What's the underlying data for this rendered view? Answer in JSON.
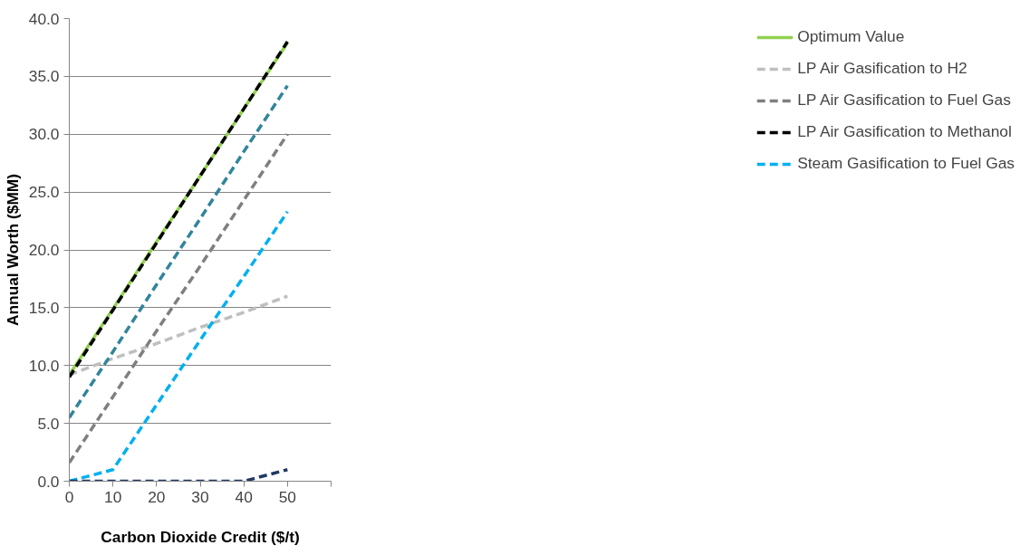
{
  "chart_data": {
    "type": "line",
    "xlabel": "Carbon Dioxide Credit ($/t)",
    "ylabel": "Annual Worth ($MM)",
    "x": [
      0,
      10,
      20,
      30,
      40,
      50
    ],
    "xlim": [
      0,
      60
    ],
    "xticks": [
      0,
      10,
      20,
      30,
      40,
      50,
      {
        "value": 60,
        "label": null
      }
    ],
    "ylim": [
      0,
      40
    ],
    "yticks": [
      {
        "value": 0,
        "label": "0.0"
      },
      {
        "value": 5,
        "label": "5.0"
      },
      {
        "value": 10,
        "label": "10.0"
      },
      {
        "value": 15,
        "label": "15.0"
      },
      {
        "value": 20,
        "label": "20.0"
      },
      {
        "value": 25,
        "label": "25.0"
      },
      {
        "value": 30,
        "label": "30.0"
      },
      {
        "value": 35,
        "label": "35.0"
      },
      {
        "value": 40,
        "label": "40.0"
      }
    ],
    "grid": "y",
    "legend": "right",
    "marker": "none",
    "series": [
      {
        "name": "Optimum Value",
        "color": "#92d050",
        "line_style": "solid",
        "values": [
          9.2,
          14.9,
          20.7,
          26.4,
          32.2,
          37.9
        ]
      },
      {
        "name": "LP Air Gasification to H2",
        "color": "#bfbfbf",
        "line_style": "dashed",
        "values": [
          9.2,
          10.6,
          11.9,
          13.3,
          14.6,
          16.0
        ]
      },
      {
        "name": "LP Air Gasification to Fuel Gas",
        "color": "#7f7f7f",
        "line_style": "dashed",
        "values": [
          1.6,
          7.3,
          13.0,
          18.6,
          24.3,
          30.0
        ]
      },
      {
        "name": "LP Air Gasification to Methanol",
        "color": "#000000",
        "line_style": "dashed",
        "values": [
          9.0,
          14.8,
          20.6,
          26.4,
          32.2,
          38.0
        ]
      },
      {
        "name": "Steam Gasification to Fuel Gas",
        "color": "#00b0f0",
        "line_style": "dashed",
        "values": [
          0,
          1.0,
          6.6,
          12.2,
          17.7,
          23.3
        ]
      },
      {
        "color": "#31849b",
        "line_style": "dashed",
        "values": [
          5.5,
          11.2,
          17.0,
          22.7,
          28.5,
          34.2
        ]
      },
      {
        "color": "#1f3864",
        "line_style": "dashed",
        "values": [
          0,
          0,
          0,
          0,
          0,
          1.0
        ]
      }
    ]
  }
}
